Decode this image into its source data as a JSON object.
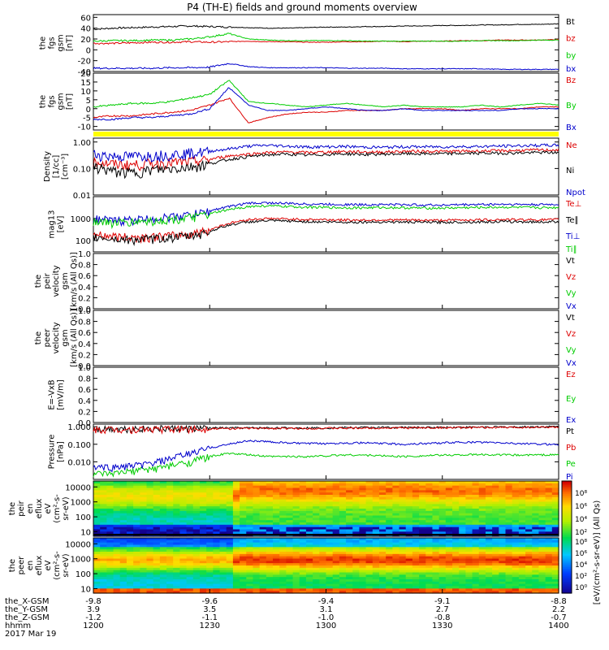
{
  "title": "P4 (TH-E) fields and ground moments overview",
  "colors": {
    "black": "#000000",
    "red": "#dd0000",
    "green": "#00cc00",
    "blue": "#0000cc",
    "yellow": "#ffff00",
    "frame": "#000000"
  },
  "time_axis": {
    "range": [
      "12:00",
      "14:00"
    ],
    "rows": [
      {
        "label": "the_X-GSM",
        "values": [
          "-9.8",
          "-9.6",
          "-9.4",
          "-9.1",
          "-8.8"
        ]
      },
      {
        "label": "the_Y-GSM",
        "values": [
          "3.9",
          "3.5",
          "3.1",
          "2.7",
          "2.2"
        ]
      },
      {
        "label": "the_Z-GSM",
        "values": [
          "-1.2",
          "-1.1",
          "-1.0",
          "-0.8",
          "-0.7"
        ]
      },
      {
        "label": "hhmm",
        "values": [
          "1200",
          "1230",
          "1300",
          "1330",
          "1400"
        ]
      }
    ],
    "date": "2017 Mar 19"
  },
  "colorbar": {
    "label": "[eV/(cm²-s-sr-eV)] (All Qs)",
    "top_ticks": [
      "10⁸",
      "10⁶",
      "10⁴",
      "10²"
    ],
    "bottom_ticks": [
      "10⁸",
      "10⁶",
      "10⁴",
      "10²",
      "10⁰"
    ]
  },
  "chart_data": [
    {
      "type": "line",
      "id": "fgs_gsm",
      "ylabel": [
        "the",
        "fgs",
        "gsm",
        "[nT]"
      ],
      "ylim": [
        -40,
        65
      ],
      "yticks": [
        "60",
        "40",
        "20",
        "0",
        "-20",
        "-40"
      ],
      "series": [
        {
          "name": "Bt",
          "color": "black",
          "values": [
            38,
            40,
            41,
            42,
            43,
            44,
            43,
            42,
            41,
            40,
            40,
            41,
            42,
            42,
            43,
            43,
            44,
            44,
            45,
            45,
            46,
            46,
            47,
            47,
            48
          ]
        },
        {
          "name": "bz",
          "color": "red",
          "values": [
            12,
            12,
            13,
            14,
            14,
            15,
            14,
            15,
            16,
            15,
            15,
            14,
            14,
            15,
            15,
            16,
            15,
            16,
            16,
            17,
            17,
            18,
            18,
            18,
            19
          ]
        },
        {
          "name": "by",
          "color": "green",
          "values": [
            16,
            17,
            17,
            18,
            18,
            20,
            24,
            30,
            20,
            18,
            17,
            17,
            17,
            17,
            16,
            16,
            16,
            16,
            16,
            16,
            17,
            17,
            17,
            18,
            18
          ]
        },
        {
          "name": "bx",
          "color": "blue",
          "values": [
            -34,
            -34,
            -34,
            -34,
            -33,
            -33,
            -32,
            -25,
            -31,
            -33,
            -33,
            -33,
            -33,
            -34,
            -34,
            -34,
            -35,
            -35,
            -35,
            -35,
            -35,
            -36,
            -36,
            -36,
            -36
          ]
        }
      ]
    },
    {
      "type": "line",
      "id": "fgs_dsl",
      "ylabel": [
        "the",
        "fgs",
        "gsm",
        "[nT]"
      ],
      "ylim": [
        -12,
        20
      ],
      "yticks": [
        "20",
        "15",
        "10",
        "5",
        "0",
        "-5",
        "-10"
      ],
      "series": [
        {
          "name": "Bz",
          "color": "red",
          "values": [
            -5,
            -4,
            -4,
            -3,
            -2,
            -1,
            2,
            6,
            -8,
            -5,
            -3,
            -2,
            -2,
            -1,
            -1,
            -1,
            0,
            0,
            0,
            -1,
            0,
            0,
            0,
            1,
            1
          ]
        },
        {
          "name": "By",
          "color": "green",
          "values": [
            1,
            2,
            3,
            3,
            4,
            6,
            8,
            16,
            4,
            3,
            2,
            1,
            2,
            3,
            2,
            1,
            2,
            1,
            1,
            1,
            2,
            1,
            2,
            3,
            2
          ]
        },
        {
          "name": "Bx",
          "color": "blue",
          "values": [
            -6,
            -6,
            -5,
            -5,
            -4,
            -3,
            0,
            12,
            2,
            -1,
            -1,
            0,
            1,
            0,
            -1,
            -1,
            0,
            -1,
            -1,
            -1,
            -1,
            -1,
            0,
            0,
            0
          ]
        }
      ]
    },
    {
      "type": "line",
      "id": "density",
      "log": true,
      "ylabel": [
        "Density",
        "[1/cc]",
        "[cm⁻³]"
      ],
      "ylim": [
        0.01,
        1.4
      ],
      "yticks": [
        "1.00",
        "0.10",
        "0.01"
      ],
      "series": [
        {
          "name": "Ne",
          "color": "red",
          "values": [
            0.18,
            0.15,
            0.14,
            0.16,
            0.17,
            0.18,
            0.22,
            0.3,
            0.35,
            0.4,
            0.42,
            0.4,
            0.42,
            0.44,
            0.42,
            0.42,
            0.44,
            0.45,
            0.44,
            0.45,
            0.46,
            0.47,
            0.48,
            0.5,
            0.5
          ]
        },
        {
          "name": "Ni",
          "color": "black",
          "values": [
            0.12,
            0.08,
            0.07,
            0.09,
            0.1,
            0.12,
            0.15,
            0.22,
            0.28,
            0.33,
            0.35,
            0.32,
            0.34,
            0.36,
            0.34,
            0.35,
            0.36,
            0.36,
            0.36,
            0.37,
            0.38,
            0.38,
            0.39,
            0.4,
            0.4
          ]
        },
        {
          "name": "Npot",
          "color": "blue",
          "values": [
            0.35,
            0.3,
            0.3,
            0.32,
            0.35,
            0.4,
            0.45,
            0.55,
            0.7,
            0.75,
            0.7,
            0.65,
            0.66,
            0.68,
            0.64,
            0.63,
            0.66,
            0.66,
            0.66,
            0.67,
            0.68,
            0.7,
            0.72,
            0.75,
            0.75
          ]
        }
      ]
    },
    {
      "type": "line",
      "id": "temperature",
      "log": true,
      "ylabel": [
        "mag13",
        "[eV]"
      ],
      "ylim": [
        30,
        10000
      ],
      "yticks": [
        "1000",
        "100"
      ],
      "series": [
        {
          "name": "Te⊥",
          "color": "red",
          "values": [
            200,
            160,
            140,
            150,
            170,
            200,
            300,
            600,
            900,
            1000,
            950,
            900,
            900,
            850,
            850,
            870,
            860,
            840,
            830,
            860,
            880,
            900,
            890,
            880,
            900
          ]
        },
        {
          "name": "Te∥",
          "color": "black",
          "values": [
            150,
            120,
            110,
            120,
            140,
            160,
            250,
            500,
            700,
            800,
            760,
            720,
            700,
            680,
            690,
            700,
            690,
            680,
            670,
            690,
            700,
            720,
            710,
            700,
            720
          ]
        },
        {
          "name": "Ti⊥",
          "color": "blue",
          "values": [
            1000,
            800,
            900,
            1000,
            1200,
            1500,
            2200,
            3500,
            5000,
            5200,
            4900,
            4600,
            4500,
            4400,
            4300,
            4400,
            4300,
            4200,
            4100,
            4300,
            4400,
            4500,
            4400,
            4300,
            4400
          ]
        },
        {
          "name": "Ti∥",
          "color": "green",
          "values": [
            800,
            650,
            700,
            800,
            900,
            1100,
            1600,
            2500,
            3500,
            3800,
            3500,
            3300,
            3200,
            3100,
            3100,
            3200,
            3100,
            3000,
            3000,
            3100,
            3200,
            3300,
            3200,
            3100,
            3200
          ]
        }
      ]
    },
    {
      "type": "line",
      "id": "peir_velocity",
      "ylabel": [
        "the",
        "peir",
        "velocity",
        "gsm",
        "[km/s (All Qs)]"
      ],
      "ylim": [
        0,
        1
      ],
      "yticks": [
        "1.0",
        "0.8",
        "0.6",
        "0.4",
        "0.2",
        "0.0"
      ],
      "series": [
        {
          "name": "Vt",
          "color": "black",
          "values": []
        },
        {
          "name": "Vz",
          "color": "red",
          "values": []
        },
        {
          "name": "Vy",
          "color": "green",
          "values": []
        },
        {
          "name": "Vx",
          "color": "blue",
          "values": []
        }
      ]
    },
    {
      "type": "line",
      "id": "peer_velocity",
      "ylabel": [
        "the",
        "peer",
        "velocity",
        "gsm",
        "[km/s (All Qs)]"
      ],
      "ylim": [
        0,
        1
      ],
      "yticks": [
        "1.0",
        "0.8",
        "0.6",
        "0.4",
        "0.2",
        "0.0"
      ],
      "series": [
        {
          "name": "Vt",
          "color": "black",
          "values": []
        },
        {
          "name": "Vz",
          "color": "red",
          "values": []
        },
        {
          "name": "Vy",
          "color": "green",
          "values": []
        },
        {
          "name": "Vx",
          "color": "blue",
          "values": []
        }
      ]
    },
    {
      "type": "line",
      "id": "efield",
      "ylabel": [
        "E=-VxB",
        "[mV/m]"
      ],
      "ylim": [
        0,
        1
      ],
      "yticks": [
        "1.0",
        "0.8",
        "0.6",
        "0.4",
        "0.2",
        "0.0"
      ],
      "series": [
        {
          "name": "Ez",
          "color": "red",
          "values": []
        },
        {
          "name": "Ey",
          "color": "green",
          "values": []
        },
        {
          "name": "Ex",
          "color": "blue",
          "values": []
        }
      ]
    },
    {
      "type": "line",
      "id": "pressure",
      "log": true,
      "ylabel": [
        "Pressure",
        "[nPa]"
      ],
      "ylim": [
        0.001,
        1.4
      ],
      "yticks": [
        "1.000",
        "0.100",
        "0.010"
      ],
      "series": [
        {
          "name": "Pt",
          "color": "black",
          "values": [
            0.8,
            0.8,
            0.8,
            0.8,
            0.8,
            0.8,
            0.85,
            0.85,
            0.85,
            0.85,
            0.85,
            0.85,
            0.85,
            0.88,
            0.9,
            0.9,
            0.9,
            0.9,
            0.92,
            0.92,
            0.94,
            0.95,
            0.96,
            0.98,
            1.0
          ]
        },
        {
          "name": "Pb",
          "color": "red",
          "values": [
            0.7,
            0.72,
            0.73,
            0.74,
            0.76,
            0.76,
            0.78,
            0.78,
            0.8,
            0.8,
            0.8,
            0.8,
            0.82,
            0.82,
            0.84,
            0.84,
            0.86,
            0.86,
            0.88,
            0.88,
            0.9,
            0.9,
            0.92,
            0.94,
            0.95
          ]
        },
        {
          "name": "Pe",
          "color": "green",
          "values": [
            0.002,
            0.002,
            0.003,
            0.004,
            0.006,
            0.01,
            0.02,
            0.03,
            0.025,
            0.02,
            0.02,
            0.02,
            0.022,
            0.025,
            0.024,
            0.022,
            0.02,
            0.022,
            0.024,
            0.025,
            0.026,
            0.025,
            0.024,
            0.025,
            0.025
          ]
        },
        {
          "name": "Pi",
          "color": "blue",
          "values": [
            0.005,
            0.005,
            0.006,
            0.008,
            0.015,
            0.03,
            0.06,
            0.1,
            0.16,
            0.14,
            0.12,
            0.11,
            0.11,
            0.12,
            0.12,
            0.11,
            0.1,
            0.11,
            0.12,
            0.13,
            0.13,
            0.12,
            0.11,
            0.1,
            0.1
          ]
        }
      ]
    },
    {
      "type": "heatmap",
      "id": "peir_en_eflux",
      "ylabel": [
        "the",
        "peir",
        "en",
        "eflux",
        "eV",
        "(cm²-s-",
        "sr-eV)"
      ],
      "ylim": [
        5,
        25000
      ],
      "yticks": [
        "10000",
        "1000",
        "100",
        "10"
      ]
    },
    {
      "type": "heatmap",
      "id": "peer_en_eflux",
      "ylabel": [
        "the",
        "peer",
        "en",
        "eflux",
        "eV",
        "(cm²-s-",
        "sr-eV)"
      ],
      "ylim": [
        5,
        25000
      ],
      "yticks": [
        "10000",
        "1000",
        "100",
        "10"
      ]
    }
  ]
}
